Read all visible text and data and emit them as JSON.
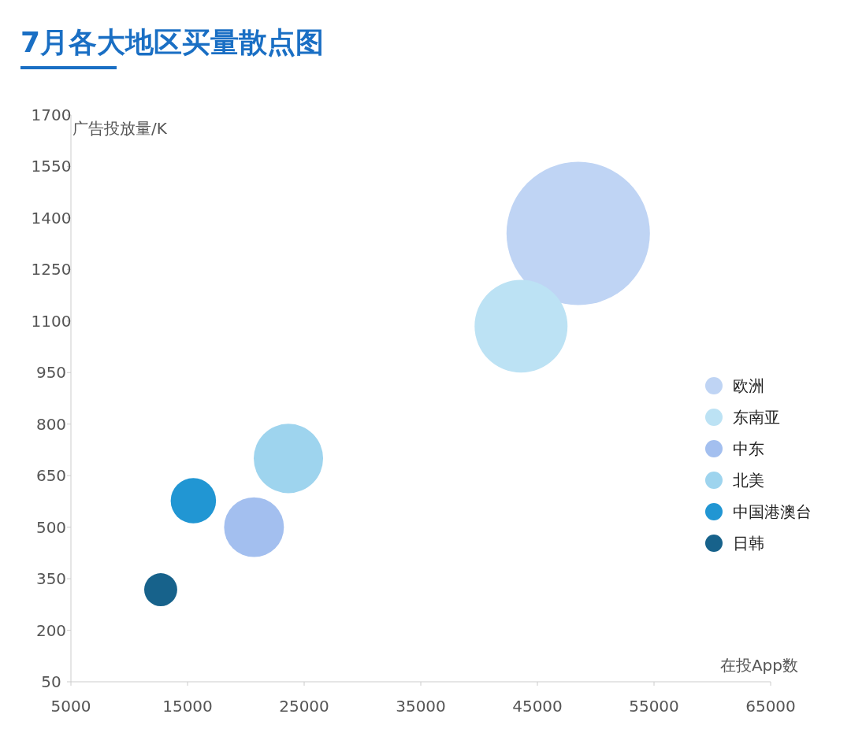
{
  "chart_data": {
    "type": "bubble",
    "title": "7月各大地区买量散点图",
    "xlabel": "在投App数",
    "ylabel": "广告投放量/K",
    "xlim": [
      5000,
      65000
    ],
    "xticks": [
      5000,
      15000,
      25000,
      35000,
      45000,
      55000,
      65000
    ],
    "ylim": [
      50,
      1700
    ],
    "yticks": [
      50,
      200,
      350,
      500,
      650,
      800,
      950,
      1100,
      1250,
      1400,
      1550,
      1700
    ],
    "legend": "right",
    "grid": false,
    "series": [
      {
        "name": "欧洲",
        "color": "#bfd4f4",
        "x": [
          48500
        ],
        "values": [
          1355
        ],
        "sizes": [
          1
        ]
      },
      {
        "name": "东南亚",
        "color": "#bce2f4",
        "x": [
          43600
        ],
        "values": [
          1085
        ],
        "sizes": [
          0.42
        ]
      },
      {
        "name": "中东",
        "color": "#a3bfef",
        "x": [
          20700
        ],
        "values": [
          500
        ],
        "sizes": [
          0.174
        ]
      },
      {
        "name": "北美",
        "color": "#9ed4ee",
        "x": [
          23650
        ],
        "values": [
          700
        ],
        "sizes": [
          0.234
        ]
      },
      {
        "name": "中国港澳台",
        "color": "#2196d3",
        "x": [
          15500
        ],
        "values": [
          577
        ],
        "sizes": [
          0.1
        ]
      },
      {
        "name": "日韩",
        "color": "#17628b",
        "x": [
          12700
        ],
        "values": [
          318
        ],
        "sizes": [
          0.053
        ]
      }
    ]
  }
}
